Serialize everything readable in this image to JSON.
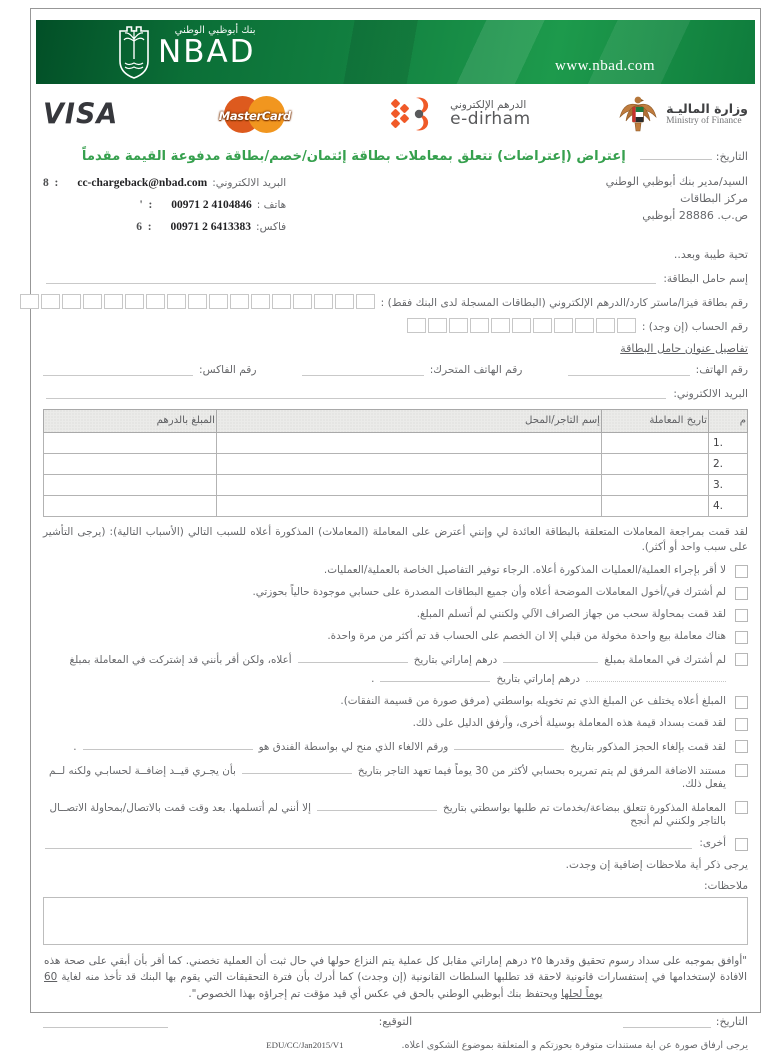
{
  "banner": {
    "url": "www.nbad.com",
    "logo_text": "NBAD",
    "logo_arabic": "بنك أبوظبي الوطني"
  },
  "logos": {
    "visa": "VISA",
    "mastercard": "MasterCard",
    "edirham_ar": "الدرهم الإلكتروني",
    "edirham_en": "e-dirham",
    "mof_ar": "وزارة الماليـة",
    "mof_en": "Ministry of Finance"
  },
  "title": "إعتراض (إعتراضات) تتعلق بمعاملات بطاقة إئتمان/خصم/بطاقة مدفوعة القيمة مقدماً",
  "date_label": "التاريخ:",
  "addressee": {
    "line1": "السيد/مدير بنك أبوظبي الوطني",
    "line2": "مركز البطاقات",
    "line3": "ص.ب. 28886 أبوظبي"
  },
  "contact": {
    "email_label": "البريد الالكتروني:",
    "email": "cc-chargeback@nbad.com",
    "email_suffix": "8  :",
    "phone_label": "هاتف :",
    "phone": "00971 2 4104846",
    "phone_suffix": "'  :",
    "fax_label": "فاكس:",
    "fax": "00971 2 6413383",
    "fax_suffix": "6  :"
  },
  "greeting": "تحية طيبة وبعد..",
  "fields": {
    "cardholder_name_label": "إسم حامل البطاقة:",
    "card_number_label": "رقم بطاقة فيزا/ماستر كارد/الدرهم الإلكتروني (البطاقات المسجلة لدى البنك فقط) :",
    "card_number_boxes": 17,
    "account_number_label": "رقم الحساب (إن وجد) :",
    "account_number_boxes": 11,
    "address_section_title": "تفاصيل عنوان حامل البطاقة",
    "phone_label": "رقم الهاتف:",
    "mobile_label": "رقم الهاتف المتحرك:",
    "fax_label": "رقم الفاكس:",
    "email_label": "البريد الالكتروني:"
  },
  "table": {
    "headers": [
      "م",
      "تاريخ المعاملة",
      "إسم التاجر/المحل",
      "المبلغ بالدرهم"
    ],
    "rows": [
      "1.",
      "2.",
      "3.",
      "4."
    ]
  },
  "intro": "لقد قمت بمراجعة المعاملات المتعلقة بالبطاقة العائدة لي وإنني أعترض على المعاملة (المعاملات) المذكورة أعلاه للسبب التالي (الأسباب التالية): (يرجى التأشير على سبب واحد أو أكثر).",
  "reasons": [
    {
      "s0": "لا أقر بإجراء العملية/العمليات المذكورة أعلاه. الرجاء توفير التفاصيل الخاصة بالعملية/العمليات."
    },
    {
      "s0": "لم أشترك في/أخول المعاملات الموضحة أعلاه وأن جميع البطاقات المصدرة على حسابي موجودة حالياً بحوزتي."
    },
    {
      "s0": "لقد قمت بمحاولة سحب من جهاز الصراف الآلي ولكنني لم أتسلم المبلغ."
    },
    {
      "s0": "هناك معاملة بيع واحدة مخولة من قبلي إلا ان الخصم على الحساب قد تم أكثر من مرة واحدة."
    },
    {
      "s0": "لم أشترك في المعاملة بمبلغ",
      "s1": "درهم إماراتي بتاريخ",
      "s2": "أعلاه، ولكن أقر بأنني قد إشتركت في المعاملة بمبلغ",
      "s3": "درهم إماراتي بتاريخ",
      "s4": "."
    },
    {
      "s0": "المبلغ أعلاه يختلف عن المبلغ الذي تم تخويله بواسطتي (مرفق صورة من قسيمة النفقات)."
    },
    {
      "s0": "لقد قمت بسداد قيمة هذه المعاملة بوسيلة أخرى، وأرفق الدليل على ذلك."
    },
    {
      "s0": "لقد قمت بإلغاء الحجز المذكور بتاريخ",
      "s1": "ورقم الالغاء الذي منح لي بواسطة الفندق هو",
      "s2": "."
    },
    {
      "s0": "مستند الاضافة المرفق لم يتم تمريره بحسابي لأكثر من 30 يوماً فيما تعهد التاجر بتاريخ",
      "s1": "بأن يجـري قيــد إضافــة لحسابـي ولكنه لــم يفعل ذلك."
    },
    {
      "s0": "المعاملة المذكورة تتعلق ببضاعة/بخدمات تم طلبها بواسطتي بتاريخ",
      "s1": "إلا أنني لم أتسلمها. بعد وقت قمت بالاتصال/بمحاولة الاتصــال بالتاجر ولكنني لم أنجح"
    },
    {
      "s0": "أخرى:"
    }
  ],
  "notes_hint": "يرجى ذكر أية ملاحظات إضافية إن وجدت.",
  "notes_label": "ملاحظات:",
  "declaration": {
    "part1": "\"أوافق بموجبه على سداد رسوم تحقيق وقدرها ٢٥ درهم إماراتي مقابل كل عملية يتم النزاع حولها في حال ثبت أن العملية تخصني. كما أقر بأن أبقي على صحة هذه الافادة لإستخدامها في إستفسارات قانونية لاحقة قد تطلبها السلطات القانونية (إن وجدت) كما أدرك بأن فترة التحقيقات التي يقوم بها البنك قد تأخذ منه لغاية ",
    "underlined": "60 يوماً لحلها",
    "part2": " ويحتفظ بنك أبوظبي الوطني بالحق في عكس أي قيد مؤقت تم إجراؤه بهذا الخصوص\"."
  },
  "signature": {
    "date_label": "التاريخ:",
    "sign_label": "التوقيع:"
  },
  "footer": {
    "code": "EDU/CC/Jan2015/V1",
    "note": "يرجى ارفاق صورة عن اية مستندات متوفرة بحوزتكم و المتعلقة بموضوع الشكوى اعلاه."
  }
}
